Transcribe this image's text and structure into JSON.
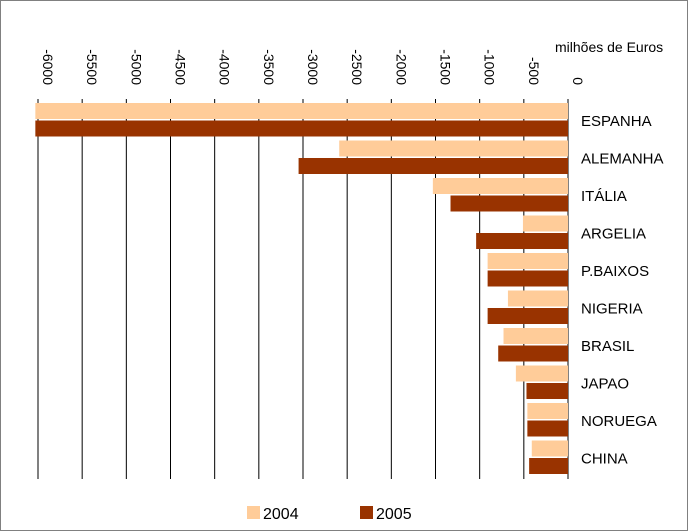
{
  "chart_data": {
    "type": "bar",
    "orientation": "horizontal",
    "unit_label": "milhões de Euros",
    "categories": [
      "ESPANHA",
      "ALEMANHA",
      "ITÁLIA",
      "ARGELIA",
      "P.BAIXOS",
      "NIGERIA",
      "BRASIL",
      "JAPAO",
      "NORUEGA",
      "CHINA"
    ],
    "series": [
      {
        "name": "2004",
        "color": "#FFCC99",
        "values": [
          -6030,
          -2590,
          -1530,
          -510,
          -910,
          -680,
          -730,
          -590,
          -460,
          -410
        ]
      },
      {
        "name": "2005",
        "color": "#993300",
        "values": [
          -6030,
          -3050,
          -1330,
          -1040,
          -910,
          -910,
          -790,
          -470,
          -460,
          -440
        ]
      }
    ],
    "xlim": [
      -6000,
      0
    ],
    "xticks": [
      "-6000",
      "-5500",
      "-5000",
      "-4500",
      "-4000",
      "-3500",
      "-3000",
      "-2500",
      "-2000",
      "-1500",
      "-1000",
      "-500",
      "0"
    ],
    "xtick_values": [
      -6000,
      -5500,
      -5000,
      -4500,
      -4000,
      -3500,
      -3000,
      -2500,
      -2000,
      -1500,
      -1000,
      -500,
      0
    ],
    "grid": true,
    "legend_position": "bottom"
  }
}
